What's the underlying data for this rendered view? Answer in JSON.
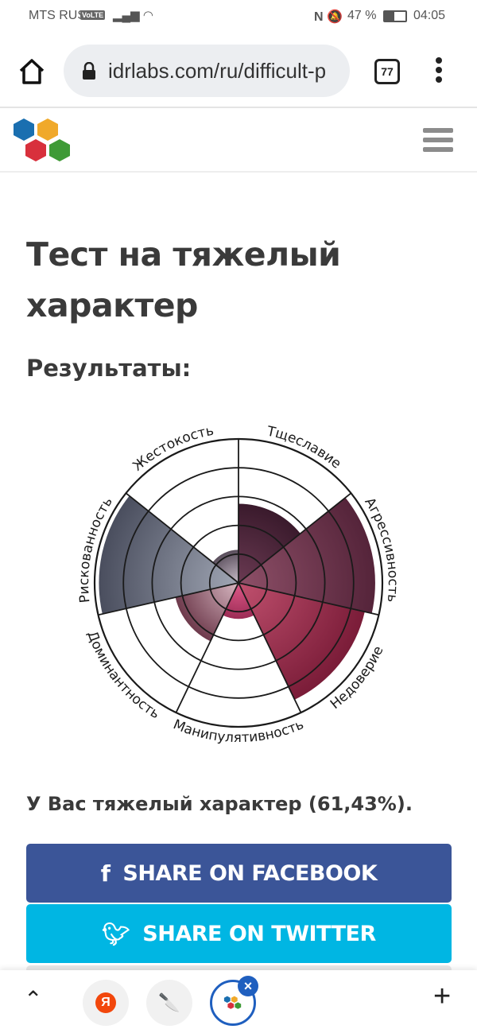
{
  "status_bar": {
    "carrier": "MTS RUS",
    "volte": "VoLTE",
    "battery": "47 %",
    "time": "04:05"
  },
  "browser": {
    "url": "idrlabs.com/ru/difficult-p",
    "tab_count": "77"
  },
  "page": {
    "title": "Тест на тяжелый характер",
    "results_heading": "Результаты:",
    "result_text": "У Вас тяжелый характер (61,43%)."
  },
  "share": {
    "facebook": "SHARE ON FACEBOOK",
    "twitter": "SHARE ON TWITTER",
    "facebook_color": "#3b5598",
    "twitter_color": "#00b6e3"
  },
  "bottom_bar": {
    "yandex_letter": "Я"
  },
  "chart_data": {
    "type": "polar-area",
    "rlim": [
      0,
      100
    ],
    "rings": 5,
    "categories": [
      "Тщеславие",
      "Агрессивность",
      "Недоверие",
      "Манипулятивность",
      "Доминантность",
      "Рискованность",
      "Жестокость"
    ],
    "values": [
      55,
      95,
      90,
      25,
      45,
      97,
      23
    ],
    "colors": [
      [
        "#6a3a52",
        "#3a1a2c"
      ],
      [
        "#8e5068",
        "#55243a"
      ],
      [
        "#c0506e",
        "#7a1c38"
      ],
      [
        "#e05a8a",
        "#9c2c55"
      ],
      [
        "#d8b8c2",
        "#6e3a4c"
      ],
      [
        "#a0a6b4",
        "#4a4e5e"
      ],
      [
        "#c8bcc8",
        "#5a4e5c"
      ]
    ]
  }
}
